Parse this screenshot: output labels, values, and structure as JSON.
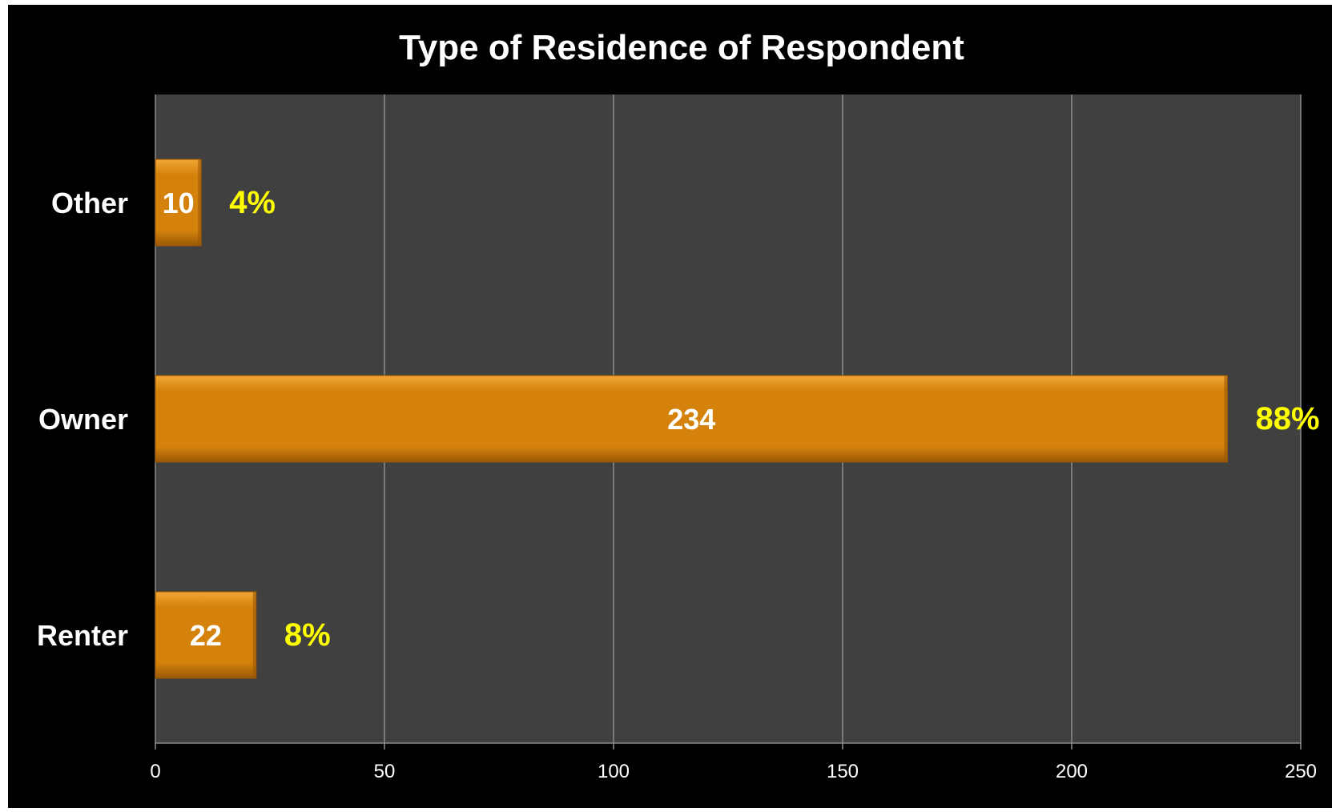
{
  "chart_data": {
    "type": "bar",
    "orientation": "horizontal",
    "title": "Type of Residence of Respondent",
    "categories": [
      "Other",
      "Owner",
      "Renter"
    ],
    "values": [
      10,
      234,
      22
    ],
    "percent_labels": [
      "4%",
      "88%",
      "8%"
    ],
    "xlim": [
      0,
      250
    ],
    "x_ticks": [
      0,
      50,
      100,
      150,
      200,
      250
    ],
    "grid": "vertical",
    "legend": "none",
    "colors": {
      "bar": "#d4820c",
      "bar_light": "#f2a634",
      "bar_dark": "#9a5806",
      "plot_background": "#404040",
      "outer_background": "#000000",
      "gridline": "#8c8c8c",
      "title_text": "#ffffff",
      "value_label_text": "#ffffff",
      "percent_label_text": "#ffff00",
      "tick_label_text": "#ffffff"
    }
  }
}
